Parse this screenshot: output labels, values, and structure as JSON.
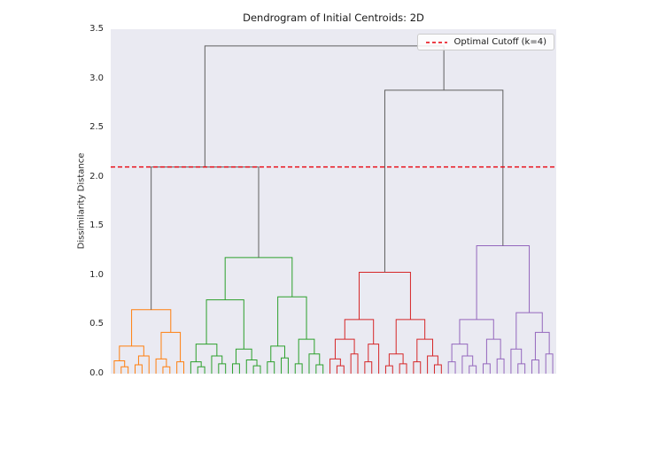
{
  "chart_data": {
    "type": "dendrogram",
    "title": "Dendrogram of Initial Centroids: 2D",
    "ylabel": "Dissimilarity Distance",
    "xlabel": "",
    "ylim": [
      0,
      3.5
    ],
    "yticks": [
      0.0,
      0.5,
      1.0,
      1.5,
      2.0,
      2.5,
      3.0,
      3.5
    ],
    "grid": false,
    "plot_background": "#eaeaf2",
    "link_color_above_cutoff": "#5f5f5f",
    "cutoff": {
      "value": 2.1,
      "label": "Optimal Cutoff (k=4)",
      "color": "#e8000b",
      "linestyle": "dashed"
    },
    "legend_position": "upper right",
    "clusters": [
      {
        "name": "cluster-1-orange",
        "color": "#ff7f0e",
        "root_height": 0.65,
        "tree": [
          0.65,
          [
            0.28,
            [
              0.13,
              0,
              [
                0.07,
                0,
                0
              ]
            ],
            [
              0.18,
              [
                0.09,
                0,
                0
              ],
              0
            ]
          ],
          [
            0.42,
            [
              0.15,
              0,
              [
                0.07,
                0,
                0
              ]
            ],
            [
              0.12,
              0,
              0
            ]
          ]
        ]
      },
      {
        "name": "cluster-2-green",
        "color": "#2ca02c",
        "root_height": 1.18,
        "tree": [
          1.18,
          [
            0.75,
            [
              0.3,
              [
                0.12,
                0,
                [
                  0.07,
                  0,
                  0
                ]
              ],
              [
                0.18,
                0,
                [
                  0.1,
                  0,
                  0
                ]
              ]
            ],
            [
              0.25,
              [
                0.1,
                0,
                0
              ],
              [
                0.14,
                0,
                [
                  0.08,
                  0,
                  0
                ]
              ]
            ]
          ],
          [
            0.78,
            [
              0.28,
              [
                0.12,
                0,
                0
              ],
              [
                0.16,
                0,
                0
              ]
            ],
            [
              0.35,
              [
                0.1,
                0,
                0
              ],
              [
                0.2,
                0,
                [
                  0.09,
                  0,
                  0
                ]
              ]
            ]
          ]
        ]
      },
      {
        "name": "cluster-3-red",
        "color": "#d62728",
        "root_height": 1.03,
        "tree": [
          1.03,
          [
            0.55,
            [
              0.35,
              [
                0.15,
                0,
                [
                  0.08,
                  0,
                  0
                ]
              ],
              [
                0.2,
                0,
                0
              ]
            ],
            [
              0.3,
              [
                0.12,
                0,
                0
              ],
              0
            ]
          ],
          [
            0.55,
            [
              0.2,
              [
                0.08,
                0,
                0
              ],
              [
                0.1,
                0,
                0
              ]
            ],
            [
              0.35,
              [
                0.12,
                0,
                0
              ],
              [
                0.18,
                0,
                [
                  0.09,
                  0,
                  0
                ]
              ]
            ]
          ]
        ]
      },
      {
        "name": "cluster-4-purple",
        "color": "#9467bd",
        "root_height": 1.3,
        "tree": [
          1.3,
          [
            0.55,
            [
              0.3,
              [
                0.12,
                0,
                0
              ],
              [
                0.18,
                0,
                [
                  0.08,
                  0,
                  0
                ]
              ]
            ],
            [
              0.35,
              [
                0.1,
                0,
                0
              ],
              [
                0.15,
                0,
                0
              ]
            ]
          ],
          [
            0.62,
            [
              0.25,
              0,
              [
                0.1,
                0,
                0
              ]
            ],
            [
              0.42,
              [
                0.14,
                0,
                0
              ],
              [
                0.2,
                0,
                0
              ]
            ]
          ]
        ]
      }
    ],
    "top_merges": {
      "description": "gray links above cutoff joining cluster roots; string leaves index clusters[]",
      "tree": [
        3.33,
        [
          2.1,
          "0",
          "1"
        ],
        [
          2.88,
          "2",
          "3"
        ]
      ]
    }
  }
}
